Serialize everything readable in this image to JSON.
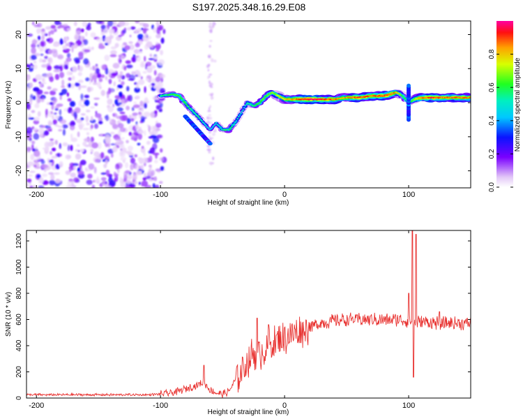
{
  "title": "S197.2025.348.16.29.E08",
  "chart_data": [
    {
      "type": "heatmap",
      "name": "spectrogram",
      "xlabel": "Height of straight line (km)",
      "ylabel": "Frequency (Hz)",
      "xlim": [
        -208,
        150
      ],
      "ylim": [
        -25,
        24
      ],
      "xticks": [
        -200,
        -100,
        0,
        100
      ],
      "yticks": [
        -20,
        -10,
        0,
        10,
        20
      ],
      "colorbar": {
        "label": "Normalized spectral amplitude",
        "range": [
          0,
          1
        ],
        "ticks": [
          0.0,
          0.2,
          0.4,
          0.6,
          0.8
        ]
      },
      "noise_region_x": [
        -208,
        -97
      ],
      "ridge": {
        "x": [
          -100,
          -90,
          -85,
          -78,
          -70,
          -65,
          -60,
          -55,
          -50,
          -45,
          -40,
          -35,
          -30,
          -25,
          -20,
          -15,
          -10,
          -5,
          0,
          10,
          20,
          30,
          40,
          50,
          60,
          70,
          80,
          90,
          95,
          100,
          105,
          110,
          120,
          130,
          140,
          150
        ],
        "freq": [
          2,
          2.5,
          2,
          -1,
          -4,
          -6,
          -8,
          -6,
          -8,
          -8,
          -6,
          -3,
          0,
          -1,
          0,
          2,
          3,
          2,
          1,
          1,
          1,
          1,
          1,
          1.5,
          1.5,
          2,
          2,
          3,
          2,
          0,
          1,
          1.5,
          1.5,
          1.5,
          1.5,
          1.5
        ],
        "amplitude": [
          0.5,
          0.6,
          0.6,
          0.55,
          0.5,
          0.45,
          0.4,
          0.45,
          0.5,
          0.55,
          0.5,
          0.45,
          0.5,
          0.55,
          0.6,
          0.6,
          0.65,
          0.7,
          0.75,
          0.85,
          0.95,
          0.9,
          0.85,
          0.8,
          0.9,
          0.85,
          0.9,
          0.8,
          0.6,
          0.5,
          0.7,
          0.85,
          0.9,
          0.85,
          0.85,
          0.85
        ]
      },
      "secondary_branch": {
        "x": [
          -80,
          -75,
          -70,
          -65,
          -60
        ],
        "freq": [
          -4,
          -6,
          -8,
          -10,
          -12
        ]
      }
    },
    {
      "type": "line",
      "name": "snr",
      "xlabel": "Height of straight line (km)",
      "ylabel": "SNR (10 * v/v)",
      "xlim": [
        -208,
        150
      ],
      "ylim": [
        0,
        1280
      ],
      "xticks": [
        -200,
        -100,
        0,
        100
      ],
      "yticks": [
        0,
        200,
        400,
        600,
        800,
        1000,
        1200
      ],
      "color": "#e8312f",
      "envelope": {
        "x": [
          -208,
          -110,
          -100,
          -90,
          -80,
          -70,
          -65,
          -60,
          -55,
          -50,
          -45,
          -40,
          -35,
          -30,
          -25,
          -20,
          -15,
          -10,
          -5,
          0,
          10,
          20,
          30,
          40,
          50,
          60,
          70,
          80,
          90,
          100,
          110,
          120,
          130,
          140,
          150
        ],
        "snr": [
          25,
          25,
          30,
          40,
          70,
          100,
          120,
          60,
          40,
          30,
          50,
          130,
          200,
          280,
          350,
          340,
          380,
          410,
          440,
          460,
          500,
          540,
          575,
          590,
          600,
          600,
          600,
          595,
          600,
          590,
          580,
          575,
          570,
          570,
          570
        ]
      },
      "peaks": [
        {
          "x": -65,
          "snr": 250
        },
        {
          "x": -22,
          "snr": 610
        },
        {
          "x": -13,
          "snr": 560
        },
        {
          "x": 100,
          "snr": 800
        },
        {
          "x": 103,
          "snr": 1280
        },
        {
          "x": 106,
          "snr": 1250
        },
        {
          "x": 104,
          "snr": 160
        },
        {
          "x": 125,
          "snr": 660
        }
      ]
    }
  ]
}
